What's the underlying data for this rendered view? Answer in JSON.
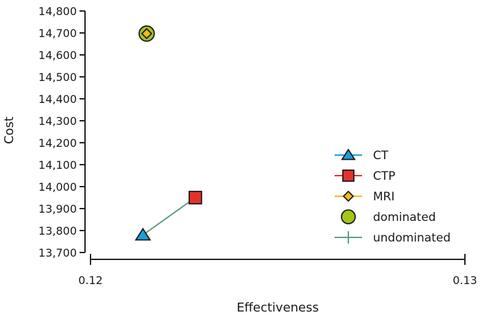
{
  "chart_data": {
    "type": "scatter",
    "title": "",
    "xlabel": "Effectiveness",
    "ylabel": "Cost",
    "xlim": [
      0.12,
      0.13
    ],
    "ylim": [
      13700,
      14800
    ],
    "x_ticks": [
      "0.12",
      "0.13"
    ],
    "y_ticks": [
      "13,700",
      "13,800",
      "13,900",
      "14,000",
      "14,100",
      "14,200",
      "14,300",
      "14,400",
      "14,500",
      "14,600",
      "14,700",
      "14,800"
    ],
    "grid": false,
    "legend_position": "lower-right",
    "series": [
      {
        "name": "CT",
        "marker": "triangle",
        "color": "#1a9ed9",
        "points": [
          {
            "x": 0.1214,
            "y": 13780
          }
        ]
      },
      {
        "name": "CTP",
        "marker": "square",
        "color": "#e5312b",
        "points": [
          {
            "x": 0.1228,
            "y": 13950
          }
        ]
      },
      {
        "name": "MRI",
        "marker": "diamond",
        "color": "#f5b914",
        "points": [
          {
            "x": 0.1215,
            "y": 14697
          }
        ]
      },
      {
        "name": "dominated",
        "marker": "circle",
        "color": "#a4c51a",
        "points": [
          {
            "x": 0.1215,
            "y": 14697
          }
        ]
      },
      {
        "name": "undominated",
        "marker": "line",
        "color": "#5e9e86",
        "points": [
          {
            "x": 0.1214,
            "y": 13780
          },
          {
            "x": 0.1228,
            "y": 13950
          }
        ]
      }
    ]
  }
}
